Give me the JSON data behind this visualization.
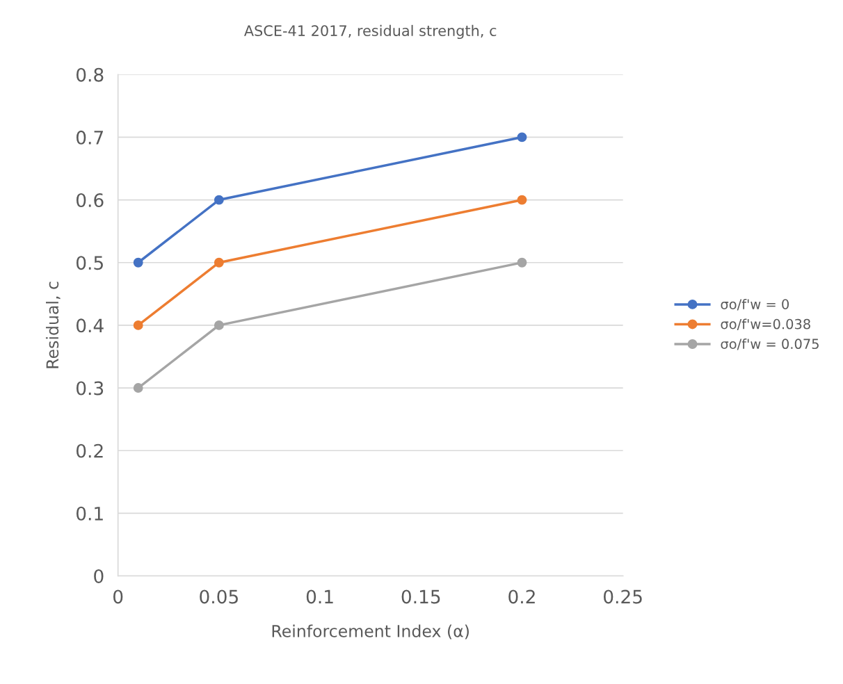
{
  "chart_data": {
    "type": "line",
    "title": "ASCE-41 2017, residual strength, c",
    "xlabel": "Reinforcement Index (α)",
    "ylabel": "Residual, c",
    "x": [
      0.01,
      0.05,
      0.2
    ],
    "series": [
      {
        "name": "σo/f'w = 0",
        "color": "#4472c4",
        "values": [
          0.5,
          0.6,
          0.7
        ]
      },
      {
        "name": "σo/f'w=0.038",
        "color": "#ed7d31",
        "values": [
          0.4,
          0.5,
          0.6
        ]
      },
      {
        "name": "σo/f'w = 0.075",
        "color": "#a5a5a5",
        "values": [
          0.3,
          0.4,
          0.5
        ]
      }
    ],
    "xlim": [
      0,
      0.25
    ],
    "xticks": [
      0,
      0.05,
      0.1,
      0.15,
      0.2,
      0.25
    ],
    "ylim": [
      0,
      0.8
    ],
    "yticks": [
      0,
      0.1,
      0.2,
      0.3,
      0.4,
      0.5,
      0.6,
      0.7,
      0.8
    ],
    "grid": "y",
    "legend": "right",
    "marker": "circle",
    "line_style": "solid"
  }
}
